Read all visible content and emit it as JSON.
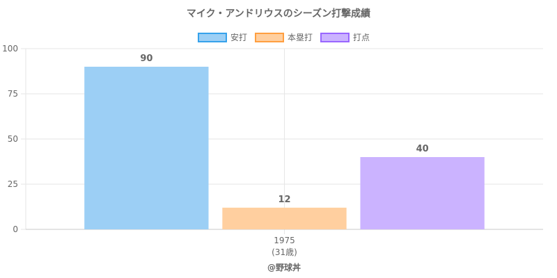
{
  "chart_data": {
    "type": "bar",
    "title": "マイク・アンドリウスのシーズン打撃成績",
    "categories": [
      "1975"
    ],
    "category_sublabels": [
      "(31歳)"
    ],
    "series": [
      {
        "name": "安打",
        "values": [
          90
        ],
        "color": "#9ccff5",
        "border": "#36a2eb"
      },
      {
        "name": "本塁打",
        "values": [
          12
        ],
        "color": "#ffcf9f",
        "border": "#ff9f40"
      },
      {
        "name": "打点",
        "values": [
          40
        ],
        "color": "#cbb3ff",
        "border": "#9966ff"
      }
    ],
    "ylim": [
      0,
      100
    ],
    "yticks": [
      0,
      25,
      50,
      75,
      100
    ],
    "grid": true,
    "legend": "top-center",
    "footer": "@野球丼"
  }
}
